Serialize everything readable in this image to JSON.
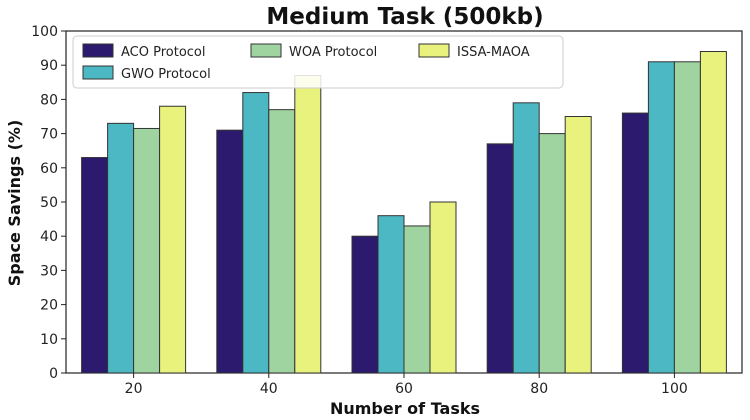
{
  "chart_data": {
    "type": "bar",
    "title": "Medium Task (500kb)",
    "xlabel": "Number of Tasks",
    "ylabel": "Space Savings (%)",
    "categories": [
      "20",
      "40",
      "60",
      "80",
      "100"
    ],
    "ylim": [
      0,
      100
    ],
    "yticks": [
      0,
      10,
      20,
      30,
      40,
      50,
      60,
      70,
      80,
      90,
      100
    ],
    "grid": false,
    "legend_position": "top-left",
    "series": [
      {
        "name": "ACO Protocol",
        "color": "#2b1a6e",
        "values": [
          63,
          71,
          40,
          67,
          76
        ]
      },
      {
        "name": "GWO Protocol",
        "color": "#4bb8c4",
        "values": [
          73,
          82,
          46,
          79,
          91
        ]
      },
      {
        "name": "WOA Protocol",
        "color": "#9fd4a0",
        "values": [
          71.5,
          77,
          43,
          70,
          91
        ]
      },
      {
        "name": "ISSA-MAOA",
        "color": "#eaf27e",
        "values": [
          78,
          87,
          50,
          75,
          94
        ]
      }
    ]
  }
}
